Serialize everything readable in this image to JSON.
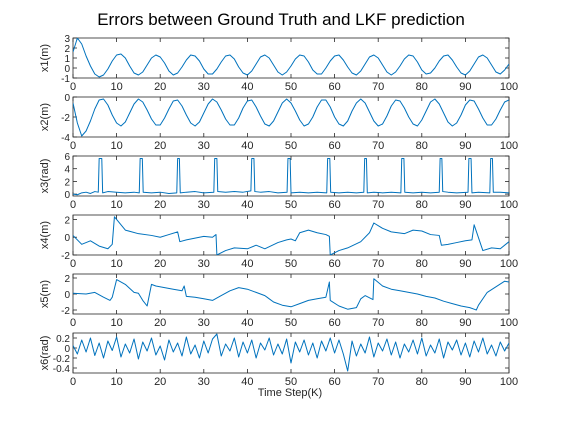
{
  "title": "Errors between Ground Truth and LKF prediction",
  "xlabel": "Time Step(K)",
  "colors": {
    "line": "#0072BD",
    "axis": "#262626",
    "text": "#262626",
    "background": "#ffffff"
  },
  "chart_data": [
    {
      "type": "line",
      "series_name": "x1 error",
      "ylabel": "x1(m)",
      "xlim": [
        0,
        100
      ],
      "ylim": [
        -1,
        3
      ],
      "xticks": [
        0,
        10,
        20,
        30,
        40,
        50,
        60,
        70,
        80,
        90,
        100
      ],
      "yticks": [
        -1,
        0,
        1,
        2,
        3
      ],
      "x": [
        0,
        1,
        2,
        3,
        4,
        5,
        6,
        7,
        8,
        9,
        10,
        11,
        12,
        13,
        14,
        15,
        16,
        17,
        18,
        19,
        20,
        21,
        22,
        23,
        24,
        25,
        26,
        27,
        28,
        29,
        30,
        31,
        32,
        33,
        34,
        35,
        36,
        37,
        38,
        39,
        40,
        41,
        42,
        43,
        44,
        45,
        46,
        47,
        48,
        49,
        50,
        51,
        52,
        53,
        54,
        55,
        56,
        57,
        58,
        59,
        60,
        61,
        62,
        63,
        64,
        65,
        66,
        67,
        68,
        69,
        70,
        71,
        72,
        73,
        74,
        75,
        76,
        77,
        78,
        79,
        80,
        81,
        82,
        83,
        84,
        85,
        86,
        87,
        88,
        89,
        90,
        91,
        92,
        93,
        94,
        95,
        96,
        97,
        98,
        99,
        100
      ],
      "y": [
        1.6,
        3.0,
        2.4,
        1.2,
        0.2,
        -0.6,
        -0.9,
        -0.7,
        -0.1,
        0.7,
        1.3,
        1.4,
        1.0,
        0.2,
        -0.5,
        -0.7,
        -0.4,
        0.3,
        1.0,
        1.3,
        1.1,
        0.5,
        -0.3,
        -0.7,
        -0.5,
        0.1,
        0.8,
        1.3,
        1.2,
        0.7,
        -0.1,
        -0.6,
        -0.6,
        -0.1,
        0.6,
        1.2,
        1.3,
        0.9,
        0.1,
        -0.5,
        -0.7,
        -0.3,
        0.4,
        1.1,
        1.3,
        1.0,
        0.3,
        -0.4,
        -0.7,
        -0.4,
        0.2,
        0.9,
        1.3,
        1.2,
        0.6,
        -0.2,
        -0.6,
        -0.6,
        0.0,
        0.7,
        1.2,
        1.3,
        0.8,
        0.1,
        -0.5,
        -0.7,
        -0.3,
        0.4,
        1.1,
        1.3,
        1.0,
        0.3,
        -0.4,
        -0.7,
        -0.4,
        0.2,
        0.9,
        1.3,
        1.2,
        0.6,
        -0.2,
        -0.6,
        -0.5,
        0.0,
        0.7,
        1.2,
        1.3,
        0.8,
        0.1,
        -0.5,
        -0.7,
        -0.3,
        0.4,
        1.1,
        1.3,
        1.0,
        0.3,
        -0.4,
        -0.6,
        -0.2,
        0.4
      ]
    },
    {
      "type": "line",
      "series_name": "x2 error",
      "ylabel": "x2(m)",
      "xlim": [
        0,
        100
      ],
      "ylim": [
        -4,
        0
      ],
      "xticks": [
        0,
        10,
        20,
        30,
        40,
        50,
        60,
        70,
        80,
        90,
        100
      ],
      "yticks": [
        -4,
        -2,
        0
      ],
      "x": [
        0,
        1,
        2,
        3,
        4,
        5,
        6,
        7,
        8,
        9,
        10,
        11,
        12,
        13,
        14,
        15,
        16,
        17,
        18,
        19,
        20,
        21,
        22,
        23,
        24,
        25,
        26,
        27,
        28,
        29,
        30,
        31,
        32,
        33,
        34,
        35,
        36,
        37,
        38,
        39,
        40,
        41,
        42,
        43,
        44,
        45,
        46,
        47,
        48,
        49,
        50,
        51,
        52,
        53,
        54,
        55,
        56,
        57,
        58,
        59,
        60,
        61,
        62,
        63,
        64,
        65,
        66,
        67,
        68,
        69,
        70,
        71,
        72,
        73,
        74,
        75,
        76,
        77,
        78,
        79,
        80,
        81,
        82,
        83,
        84,
        85,
        86,
        87,
        88,
        89,
        90,
        91,
        92,
        93,
        94,
        95,
        96,
        97,
        98,
        99,
        100
      ],
      "y": [
        -0.6,
        -2.6,
        -3.9,
        -3.4,
        -2.4,
        -1.2,
        -0.3,
        -0.2,
        -0.8,
        -1.8,
        -2.6,
        -2.9,
        -2.5,
        -1.6,
        -0.7,
        -0.2,
        -0.5,
        -1.3,
        -2.2,
        -2.8,
        -2.8,
        -2.1,
        -1.2,
        -0.4,
        -0.3,
        -0.9,
        -1.8,
        -2.6,
        -2.9,
        -2.5,
        -1.6,
        -0.7,
        -0.2,
        -0.5,
        -1.3,
        -2.2,
        -2.8,
        -2.8,
        -2.1,
        -1.1,
        -0.4,
        -0.3,
        -1.0,
        -1.9,
        -2.7,
        -2.9,
        -2.4,
        -1.5,
        -0.6,
        -0.2,
        -0.6,
        -1.4,
        -2.3,
        -2.9,
        -2.7,
        -2.0,
        -1.0,
        -0.3,
        -0.3,
        -1.0,
        -2.0,
        -2.7,
        -2.9,
        -2.4,
        -1.4,
        -0.6,
        -0.2,
        -0.6,
        -1.5,
        -2.4,
        -2.9,
        -2.7,
        -1.9,
        -0.9,
        -0.3,
        -0.4,
        -1.1,
        -2.0,
        -2.7,
        -2.9,
        -2.3,
        -1.4,
        -0.5,
        -0.2,
        -0.7,
        -1.6,
        -2.5,
        -2.9,
        -2.6,
        -1.8,
        -0.8,
        -0.3,
        -0.4,
        -1.2,
        -2.1,
        -2.8,
        -2.8,
        -2.2,
        -1.3,
        -0.5,
        -0.3
      ]
    },
    {
      "type": "line",
      "series_name": "x3 error",
      "ylabel": "x3(rad)",
      "xlim": [
        0,
        100
      ],
      "ylim": [
        -0.3,
        6
      ],
      "xticks": [
        0,
        10,
        20,
        30,
        40,
        50,
        60,
        70,
        80,
        90,
        100
      ],
      "yticks": [
        0,
        2,
        4,
        6
      ],
      "x": [
        0,
        1,
        2,
        3,
        4,
        5,
        5.8,
        6.0,
        6.6,
        6.8,
        8,
        10,
        12,
        14,
        15.2,
        15.4,
        15.9,
        16.1,
        18,
        20,
        22,
        23.8,
        24.0,
        24.4,
        24.6,
        26,
        28,
        30,
        32.3,
        32.5,
        33.0,
        33.2,
        35,
        37,
        39,
        40.8,
        41.0,
        41.5,
        41.7,
        43,
        45,
        47,
        49.1,
        49.3,
        49.8,
        50.0,
        52,
        54,
        56,
        58.2,
        58.4,
        58.9,
        59.1,
        61,
        63,
        65,
        66.7,
        66.9,
        67.3,
        67.5,
        69,
        71,
        73,
        75.2,
        75.4,
        75.9,
        76.1,
        78,
        80,
        82,
        84.0,
        84.2,
        84.6,
        84.8,
        86,
        88,
        90.6,
        90.8,
        91.3,
        91.5,
        93,
        95.6,
        95.8,
        96.2,
        96.4,
        98,
        100
      ],
      "y": [
        0.0,
        -0.1,
        0.2,
        0.3,
        0.1,
        0.4,
        0.3,
        5.6,
        5.6,
        0.2,
        0.4,
        0.3,
        0.2,
        0.3,
        0.2,
        5.6,
        5.6,
        0.3,
        0.2,
        0.3,
        0.1,
        0.2,
        5.6,
        5.6,
        0.2,
        0.3,
        0.4,
        0.2,
        0.3,
        5.6,
        5.6,
        0.4,
        0.3,
        0.4,
        0.3,
        0.5,
        5.6,
        5.6,
        0.4,
        0.3,
        0.4,
        0.2,
        0.3,
        5.6,
        5.6,
        0.2,
        0.3,
        0.2,
        0.3,
        0.2,
        5.6,
        5.6,
        0.3,
        0.2,
        0.3,
        0.2,
        0.3,
        5.6,
        5.6,
        0.2,
        0.3,
        0.2,
        0.3,
        0.2,
        5.6,
        5.6,
        0.3,
        0.2,
        0.3,
        0.2,
        0.3,
        5.6,
        5.6,
        0.4,
        0.3,
        0.2,
        0.3,
        5.6,
        5.6,
        0.2,
        0.3,
        0.2,
        5.6,
        5.6,
        0.3,
        0.3,
        0.2
      ]
    },
    {
      "type": "line",
      "series_name": "x4 error",
      "ylabel": "x4(m)",
      "xlim": [
        0,
        100
      ],
      "ylim": [
        -2,
        2.5
      ],
      "xticks": [
        0,
        10,
        20,
        30,
        40,
        50,
        60,
        70,
        80,
        90,
        100
      ],
      "yticks": [
        -2,
        0,
        2
      ],
      "x": [
        0,
        2,
        4,
        6,
        8,
        9,
        9.5,
        10,
        12,
        15,
        18,
        20,
        22,
        24,
        24.5,
        26,
        28,
        30,
        32,
        32.8,
        33,
        35,
        37,
        40,
        42,
        44,
        47,
        49,
        50,
        51,
        52,
        54,
        56,
        58,
        58.8,
        59,
        61,
        63,
        66,
        68,
        69,
        71,
        73,
        76,
        78,
        80,
        82,
        84,
        84.5,
        86,
        88,
        90,
        91.5,
        92,
        94,
        96,
        98,
        100
      ],
      "y": [
        0.2,
        -0.8,
        -0.4,
        -1.0,
        -1.3,
        -0.8,
        2.3,
        2.0,
        0.8,
        0.4,
        0.2,
        0.0,
        0.3,
        0.6,
        -0.5,
        -0.3,
        -0.1,
        0.1,
        0.0,
        0.3,
        -2.0,
        -1.5,
        -1.2,
        -1.3,
        -0.9,
        -1.3,
        -0.6,
        -0.3,
        -0.2,
        -0.4,
        0.5,
        0.8,
        0.5,
        0.3,
        0.1,
        -2.0,
        -1.5,
        -1.2,
        -0.5,
        0.5,
        1.6,
        1.0,
        0.6,
        0.4,
        0.8,
        0.7,
        0.3,
        0.2,
        -0.9,
        -0.8,
        -0.6,
        -0.4,
        -0.3,
        1.4,
        -1.5,
        -1.2,
        -1.3,
        -0.5
      ]
    },
    {
      "type": "line",
      "series_name": "x5 error",
      "ylabel": "x5(m)",
      "xlim": [
        0,
        100
      ],
      "ylim": [
        -2.5,
        2.5
      ],
      "xticks": [
        0,
        10,
        20,
        30,
        40,
        50,
        60,
        70,
        80,
        90,
        100
      ],
      "yticks": [
        -2,
        0,
        2
      ],
      "x": [
        0,
        3,
        5,
        7,
        8.5,
        9,
        10,
        12,
        14,
        15,
        16,
        17,
        18,
        19,
        21,
        23,
        25,
        25.5,
        26,
        28,
        30,
        32,
        34,
        36,
        38,
        40,
        42,
        44,
        44.5,
        45,
        46,
        48,
        50,
        52,
        54,
        56,
        57,
        58,
        58.8,
        59,
        61,
        63,
        65,
        66,
        67,
        68.8,
        69,
        71,
        73,
        75,
        77,
        79,
        81,
        83,
        85,
        87,
        89,
        91,
        92,
        92.5,
        93,
        95,
        97,
        99,
        100
      ],
      "y": [
        0.1,
        0.0,
        0.2,
        -0.4,
        -0.8,
        -0.4,
        1.8,
        1.2,
        0.2,
        0.1,
        -0.8,
        -1.5,
        1.2,
        1.0,
        0.8,
        0.6,
        0.4,
        1.0,
        -0.3,
        -0.4,
        -0.6,
        -0.8,
        -0.2,
        0.4,
        0.8,
        0.6,
        0.2,
        -0.2,
        -0.4,
        -0.6,
        -1.0,
        -1.4,
        -1.6,
        -1.2,
        -0.8,
        -0.6,
        -0.5,
        -0.4,
        1.5,
        -0.8,
        -1.5,
        -1.9,
        -1.7,
        -0.6,
        -0.2,
        -0.7,
        1.9,
        1.0,
        0.6,
        0.4,
        0.2,
        0.0,
        -0.3,
        -0.5,
        -0.9,
        -1.2,
        -1.5,
        -1.7,
        -1.9,
        -2.0,
        -1.4,
        0.2,
        0.9,
        1.6,
        1.5
      ]
    },
    {
      "type": "line",
      "series_name": "x6 error",
      "ylabel": "x6(rad)",
      "xlim": [
        0,
        100
      ],
      "ylim": [
        -0.5,
        0.3
      ],
      "xticks": [
        0,
        10,
        20,
        30,
        40,
        50,
        60,
        70,
        80,
        90,
        100
      ],
      "yticks": [
        -0.4,
        -0.2,
        0,
        0.2
      ],
      "x": [
        0,
        1,
        2,
        3,
        4,
        5,
        6,
        7,
        8,
        9,
        10,
        11,
        12,
        13,
        14,
        15,
        16,
        17,
        18,
        19,
        20,
        21,
        22,
        23,
        24,
        25,
        26,
        27,
        28,
        29,
        30,
        31,
        32,
        33,
        34,
        35,
        36,
        37,
        38,
        39,
        40,
        41,
        42,
        43,
        44,
        45,
        46,
        47,
        48,
        49,
        50,
        51,
        52,
        53,
        54,
        55,
        56,
        57,
        58,
        59,
        60,
        61,
        62,
        63,
        64,
        65,
        66,
        67,
        68,
        69,
        70,
        71,
        72,
        73,
        74,
        75,
        76,
        77,
        78,
        79,
        80,
        81,
        82,
        83,
        84,
        85,
        86,
        87,
        88,
        89,
        90,
        91,
        92,
        93,
        94,
        95,
        96,
        97,
        98,
        99,
        100
      ],
      "y": [
        0.05,
        -0.12,
        0.16,
        -0.08,
        0.2,
        -0.15,
        0.1,
        -0.2,
        0.14,
        -0.05,
        0.22,
        -0.18,
        0.08,
        -0.1,
        0.18,
        -0.22,
        0.12,
        -0.06,
        0.2,
        -0.14,
        0.04,
        -0.24,
        0.16,
        -0.08,
        0.1,
        -0.16,
        0.22,
        -0.12,
        0.06,
        -0.2,
        0.14,
        -0.1,
        0.18,
        0.28,
        -0.16,
        0.08,
        -0.06,
        0.2,
        -0.18,
        0.12,
        -0.1,
        0.16,
        -0.2,
        0.1,
        -0.04,
        0.2,
        -0.14,
        0.08,
        -0.12,
        0.18,
        -0.3,
        0.12,
        -0.08,
        0.16,
        -0.14,
        0.1,
        -0.2,
        0.14,
        -0.06,
        0.2,
        -0.1,
        0.16,
        -0.12,
        -0.46,
        0.14,
        -0.16,
        0.08,
        -0.1,
        0.22,
        -0.18,
        0.1,
        -0.06,
        0.18,
        -0.14,
        0.12,
        -0.2,
        0.08,
        -0.08,
        0.16,
        -0.12,
        0.2,
        -0.16,
        0.06,
        -0.1,
        0.18,
        -0.2,
        0.12,
        -0.04,
        0.16,
        -0.14,
        0.1,
        -0.18,
        0.14,
        -0.08,
        0.2,
        -0.12,
        0.06,
        -0.16,
        0.12,
        -0.06,
        0.1
      ]
    }
  ]
}
